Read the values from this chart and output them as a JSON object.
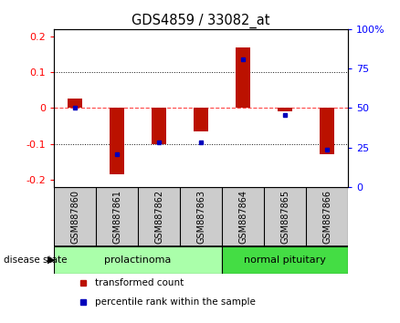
{
  "title": "GDS4859 / 33082_at",
  "samples": [
    "GSM887860",
    "GSM887861",
    "GSM887862",
    "GSM887863",
    "GSM887864",
    "GSM887865",
    "GSM887866"
  ],
  "red_bars": [
    0.025,
    -0.185,
    -0.1,
    -0.065,
    0.17,
    -0.01,
    -0.13
  ],
  "blue_dots": [
    0.002,
    -0.13,
    -0.095,
    -0.095,
    0.135,
    -0.02,
    -0.115
  ],
  "ylim_left": [
    -0.22,
    0.22
  ],
  "ylim_right": [
    0,
    100
  ],
  "yticks_left": [
    -0.2,
    -0.1,
    0.0,
    0.1,
    0.2
  ],
  "yticks_right": [
    0,
    25,
    50,
    75,
    100
  ],
  "ytick_labels_left": [
    "-0.2",
    "-0.1",
    "0",
    "0.1",
    "0.2"
  ],
  "ytick_labels_right": [
    "0",
    "25",
    "50",
    "75",
    "100%"
  ],
  "groups": [
    {
      "label": "prolactinoma",
      "indices": [
        0,
        1,
        2,
        3
      ],
      "color": "#AAFFAA"
    },
    {
      "label": "normal pituitary",
      "indices": [
        4,
        5,
        6
      ],
      "color": "#44DD44"
    }
  ],
  "disease_state_label": "disease state",
  "red_color": "#BB1100",
  "blue_color": "#0000BB",
  "bar_width": 0.35,
  "zero_line_color": "#FF4444",
  "grid_color": "#111111",
  "bg_color": "#FFFFFF",
  "plot_bg": "#FFFFFF",
  "sample_bg": "#CCCCCC",
  "legend_red": "transformed count",
  "legend_blue": "percentile rank within the sample",
  "title_fontsize": 10.5,
  "tick_fontsize": 8
}
